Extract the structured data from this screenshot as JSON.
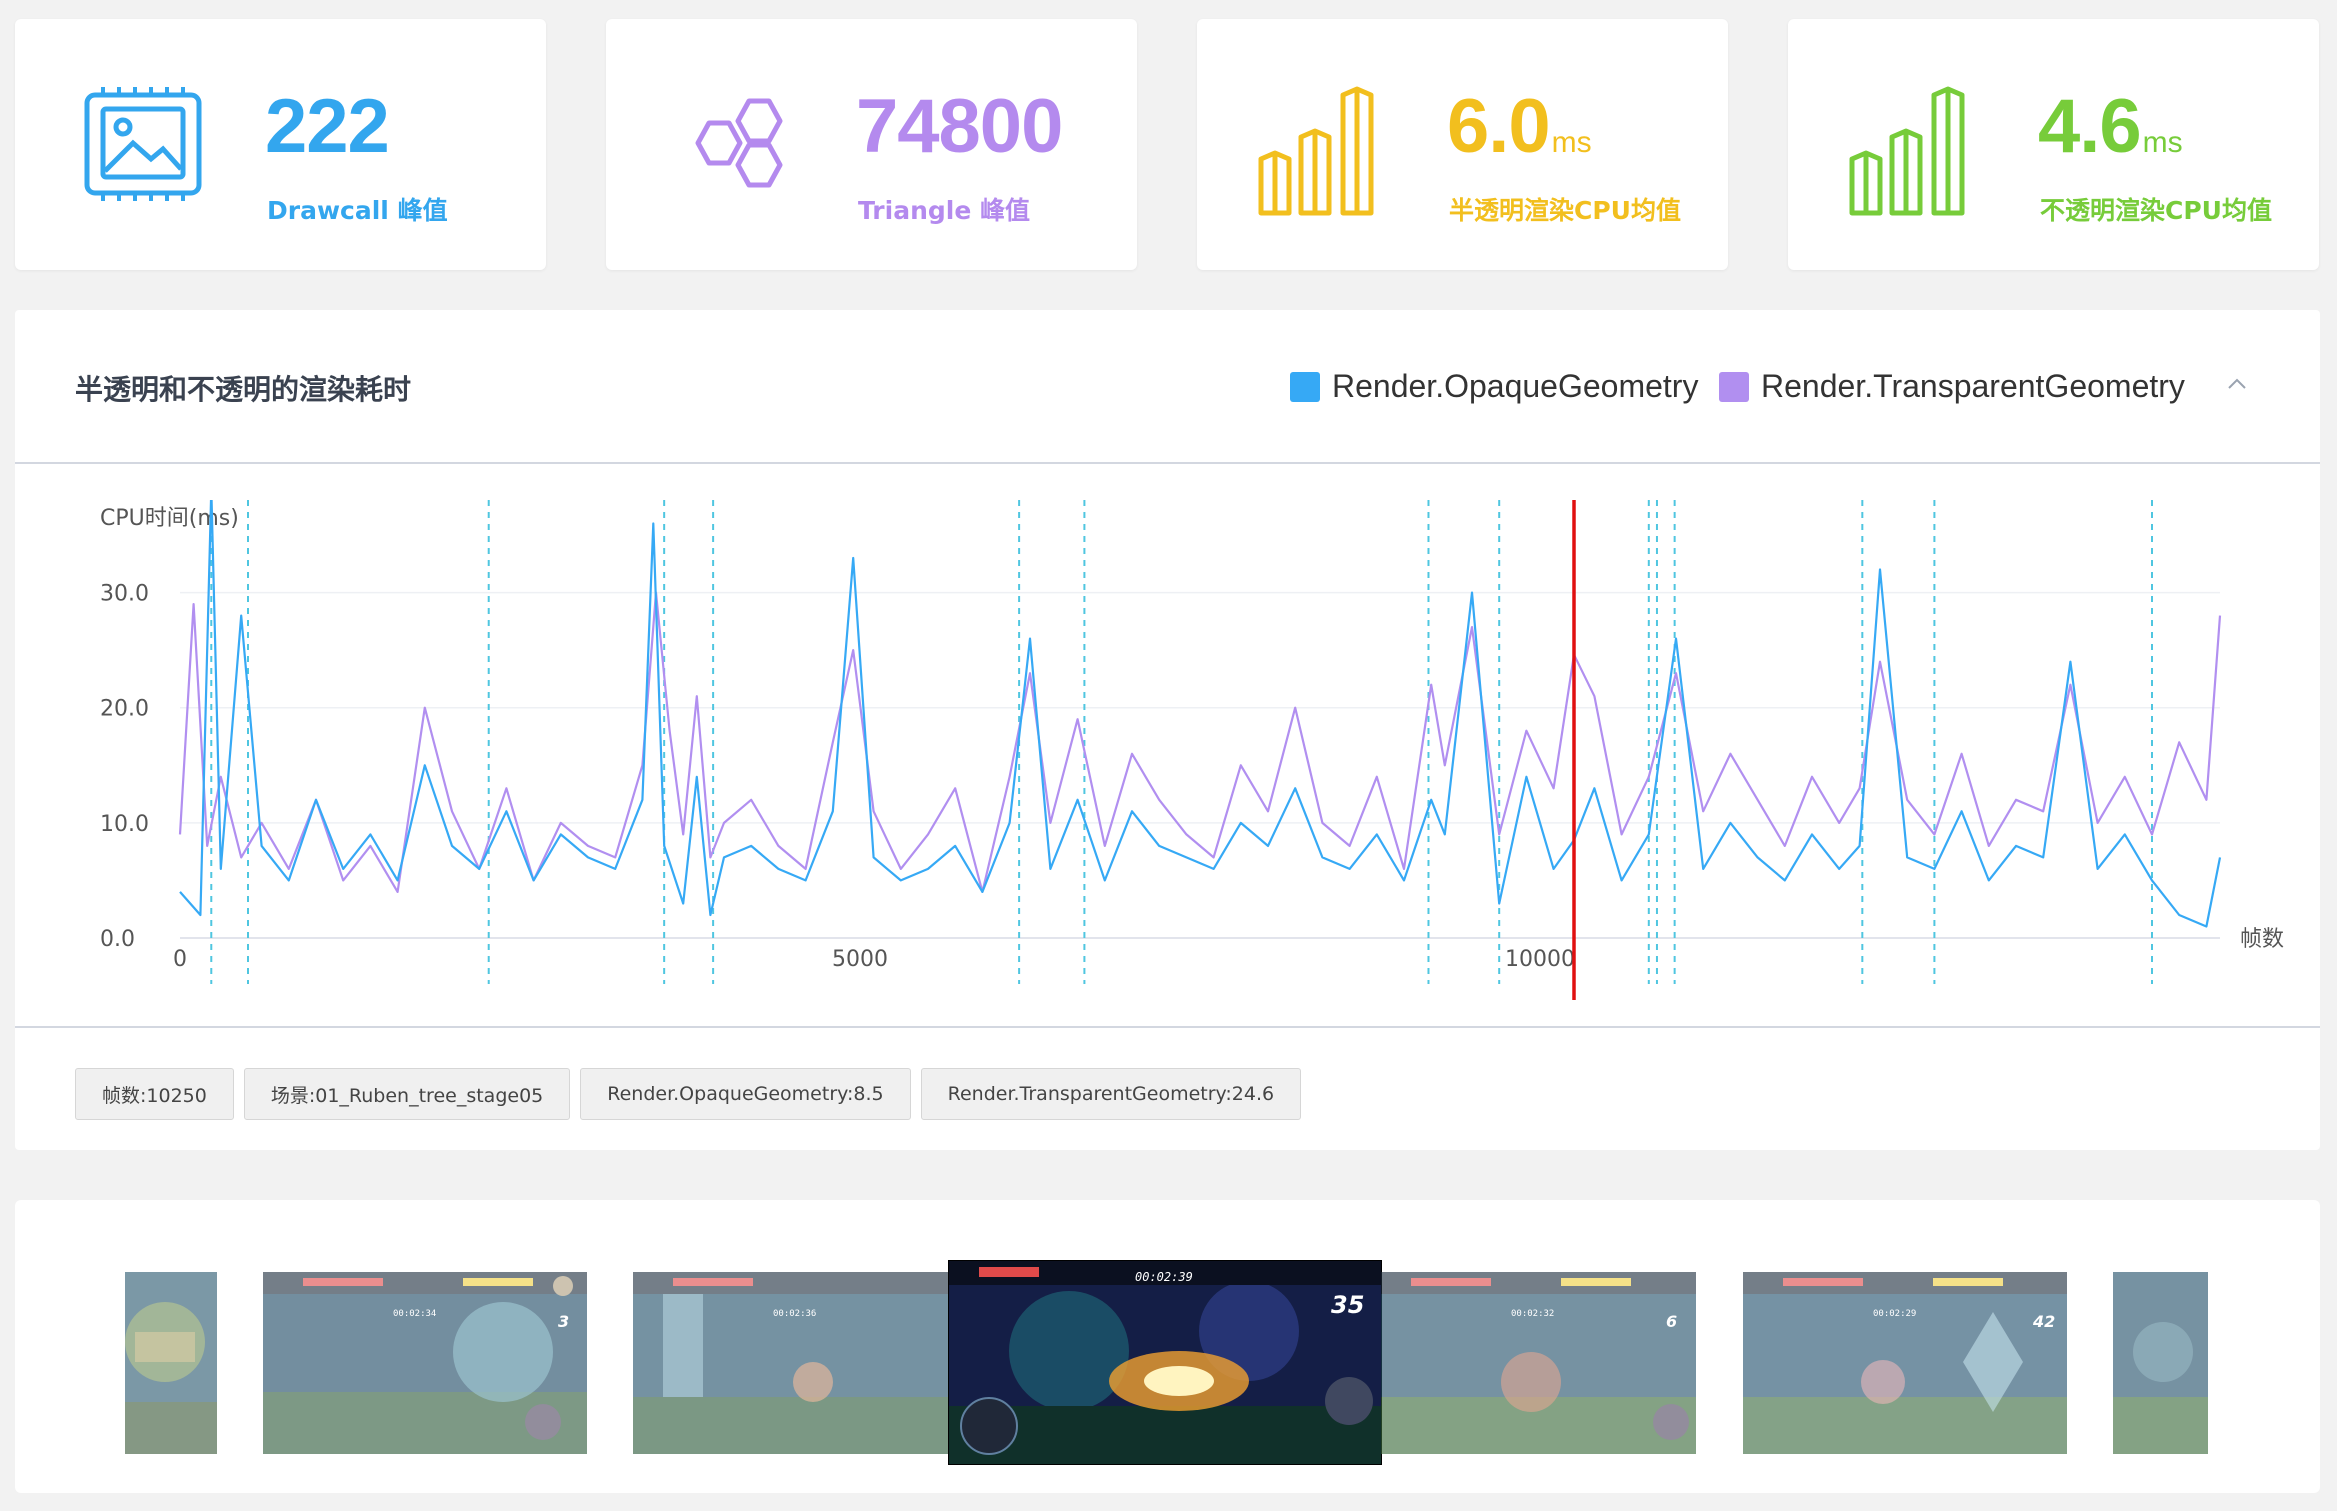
{
  "stats": [
    {
      "value": "222",
      "unit": "",
      "label": "Drawcall 峰值",
      "color": "#33a6ee",
      "icon": "image-chip-icon"
    },
    {
      "value": "74800",
      "unit": "",
      "label": "Triangle 峰值",
      "color": "#b48aee",
      "icon": "hexagon-cluster-icon"
    },
    {
      "value": "6.0",
      "unit": "ms",
      "label": "半透明渲染CPU均值",
      "color": "#f2bf1e",
      "icon": "bar-columns-icon"
    },
    {
      "value": "4.6",
      "unit": "ms",
      "label": "不透明渲染CPU均值",
      "color": "#77cc3a",
      "icon": "bar-columns-icon"
    }
  ],
  "panel": {
    "title": "半透明和不透明的渲染耗时",
    "legend": [
      {
        "name": "Render.OpaqueGeometry",
        "color": "#36a9f5"
      },
      {
        "name": "Render.TransparentGeometry",
        "color": "#b18ff0"
      }
    ],
    "tags": [
      "帧数:10250",
      "场景:01_Ruben_tree_stage05",
      "Render.OpaqueGeometry:8.5",
      "Render.TransparentGeometry:24.6"
    ]
  },
  "chart_data": {
    "type": "line",
    "ylabel": "CPU时间(ms)",
    "xlabel": "帧数",
    "ylim": [
      0,
      35
    ],
    "xlim": [
      0,
      15000
    ],
    "y_ticks": [
      "0.0",
      "10.0",
      "20.0",
      "30.0"
    ],
    "y_tick_values": [
      0,
      10,
      20,
      30
    ],
    "x_ticks": [
      "0",
      "5000",
      "10000"
    ],
    "x_tick_values": [
      0,
      5000,
      10000
    ],
    "grid": true,
    "selected_frame": 10250,
    "scene_markers": [
      230,
      500,
      2270,
      3560,
      3920,
      6170,
      6650,
      9180,
      9700,
      10800,
      10860,
      10990,
      12370,
      12900,
      14500
    ],
    "series": [
      {
        "name": "Render.OpaqueGeometry",
        "color": "#36a9f5",
        "x": [
          0,
          150,
          230,
          300,
          450,
          600,
          800,
          1000,
          1200,
          1400,
          1600,
          1800,
          2000,
          2200,
          2400,
          2600,
          2800,
          3000,
          3200,
          3400,
          3480,
          3560,
          3700,
          3800,
          3900,
          4000,
          4200,
          4400,
          4600,
          4800,
          4950,
          5100,
          5300,
          5500,
          5700,
          5900,
          6100,
          6250,
          6400,
          6600,
          6800,
          7000,
          7200,
          7400,
          7600,
          7800,
          8000,
          8200,
          8400,
          8600,
          8800,
          9000,
          9200,
          9300,
          9500,
          9700,
          9900,
          10100,
          10250,
          10400,
          10600,
          10800,
          11000,
          11200,
          11400,
          11600,
          11800,
          12000,
          12200,
          12350,
          12500,
          12700,
          12900,
          13100,
          13300,
          13500,
          13700,
          13900,
          14100,
          14300,
          14500,
          14700,
          14900,
          15000
        ],
        "values": [
          4,
          2,
          39,
          6,
          28,
          8,
          5,
          12,
          6,
          9,
          5,
          15,
          8,
          6,
          11,
          5,
          9,
          7,
          6,
          12,
          36,
          8,
          3,
          14,
          2,
          7,
          8,
          6,
          5,
          11,
          33,
          7,
          5,
          6,
          8,
          4,
          10,
          26,
          6,
          12,
          5,
          11,
          8,
          7,
          6,
          10,
          8,
          13,
          7,
          6,
          9,
          5,
          12,
          9,
          30,
          3,
          14,
          6,
          8.5,
          13,
          5,
          9,
          26,
          6,
          10,
          7,
          5,
          9,
          6,
          8,
          32,
          7,
          6,
          11,
          5,
          8,
          7,
          24,
          6,
          9,
          5,
          2,
          1,
          7
        ]
      },
      {
        "name": "Render.TransparentGeometry",
        "color": "#b18ff0",
        "x": [
          0,
          100,
          200,
          300,
          450,
          600,
          800,
          1000,
          1200,
          1400,
          1600,
          1800,
          2000,
          2200,
          2400,
          2600,
          2800,
          3000,
          3200,
          3400,
          3500,
          3600,
          3700,
          3800,
          3900,
          4000,
          4200,
          4400,
          4600,
          4800,
          4950,
          5100,
          5300,
          5500,
          5700,
          5900,
          6100,
          6250,
          6400,
          6600,
          6800,
          7000,
          7200,
          7400,
          7600,
          7800,
          8000,
          8200,
          8400,
          8600,
          8800,
          9000,
          9200,
          9300,
          9500,
          9700,
          9900,
          10100,
          10250,
          10400,
          10600,
          10800,
          11000,
          11200,
          11400,
          11600,
          11800,
          12000,
          12200,
          12350,
          12500,
          12700,
          12900,
          13100,
          13300,
          13500,
          13700,
          13900,
          14100,
          14300,
          14500,
          14700,
          14900,
          15000
        ],
        "values": [
          9,
          29,
          8,
          14,
          7,
          10,
          6,
          12,
          5,
          8,
          4,
          20,
          11,
          6,
          13,
          5,
          10,
          8,
          7,
          15,
          30,
          18,
          9,
          21,
          7,
          10,
          12,
          8,
          6,
          17,
          25,
          11,
          6,
          9,
          13,
          4,
          14,
          23,
          10,
          19,
          8,
          16,
          12,
          9,
          7,
          15,
          11,
          20,
          10,
          8,
          14,
          6,
          22,
          15,
          27,
          9,
          18,
          13,
          24.6,
          21,
          9,
          14,
          23,
          11,
          16,
          12,
          8,
          14,
          10,
          13,
          24,
          12,
          9,
          16,
          8,
          12,
          11,
          22,
          10,
          14,
          9,
          17,
          12,
          28
        ]
      }
    ]
  },
  "gallery": {
    "thumbs": [
      {
        "hud_timer": "",
        "combo": ""
      },
      {
        "hud_timer": "00:02:34",
        "combo": "3"
      },
      {
        "hud_timer": "00:02:36",
        "combo": ""
      },
      {
        "hud_timer": "00:02:39",
        "combo": "35"
      },
      {
        "hud_timer": "00:02:32",
        "combo": "6"
      },
      {
        "hud_timer": "00:02:29",
        "combo": "42"
      },
      {
        "hud_timer": "",
        "combo": ""
      }
    ]
  }
}
